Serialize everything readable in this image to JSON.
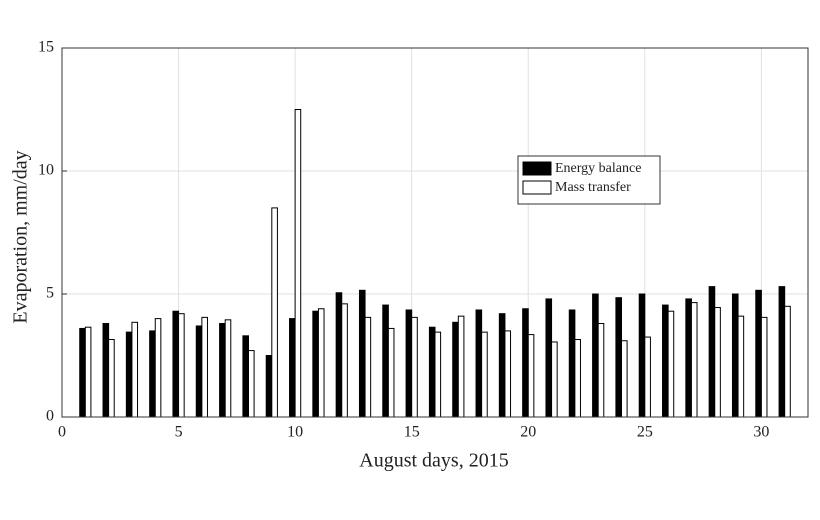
{
  "chart_data": {
    "type": "bar",
    "xlabel": "August days, 2015",
    "ylabel": "Evaporation, mm/day",
    "x": [
      1,
      2,
      3,
      4,
      5,
      6,
      7,
      8,
      9,
      10,
      11,
      12,
      13,
      14,
      15,
      16,
      17,
      18,
      19,
      20,
      21,
      22,
      23,
      24,
      25,
      26,
      27,
      28,
      29,
      30,
      31
    ],
    "series": [
      {
        "name": "Energy balance",
        "color": "#000000",
        "values": [
          3.6,
          3.8,
          3.45,
          3.5,
          4.3,
          3.7,
          3.8,
          3.3,
          2.5,
          4.0,
          4.3,
          5.05,
          5.15,
          4.55,
          4.35,
          3.65,
          3.85,
          4.35,
          4.2,
          4.4,
          4.8,
          4.35,
          5.0,
          4.85,
          5.0,
          4.55,
          4.8,
          5.3,
          5.0,
          5.15,
          5.3
        ]
      },
      {
        "name": "Mass transfer",
        "color": "#ffffff",
        "values": [
          3.65,
          3.15,
          3.85,
          4.0,
          4.2,
          4.05,
          3.95,
          2.7,
          8.5,
          12.5,
          4.4,
          4.6,
          4.05,
          3.6,
          4.05,
          3.45,
          4.1,
          3.45,
          3.5,
          3.35,
          3.05,
          3.15,
          3.8,
          3.1,
          3.25,
          4.3,
          4.65,
          4.45,
          4.1,
          4.05,
          4.5
        ]
      }
    ],
    "xlim": [
      0,
      32
    ],
    "xticks": [
      0,
      5,
      10,
      15,
      20,
      25,
      30
    ],
    "ylim": [
      0,
      15
    ],
    "yticks": [
      0,
      5,
      10,
      15
    ],
    "grid": true,
    "legend_position": "right"
  }
}
